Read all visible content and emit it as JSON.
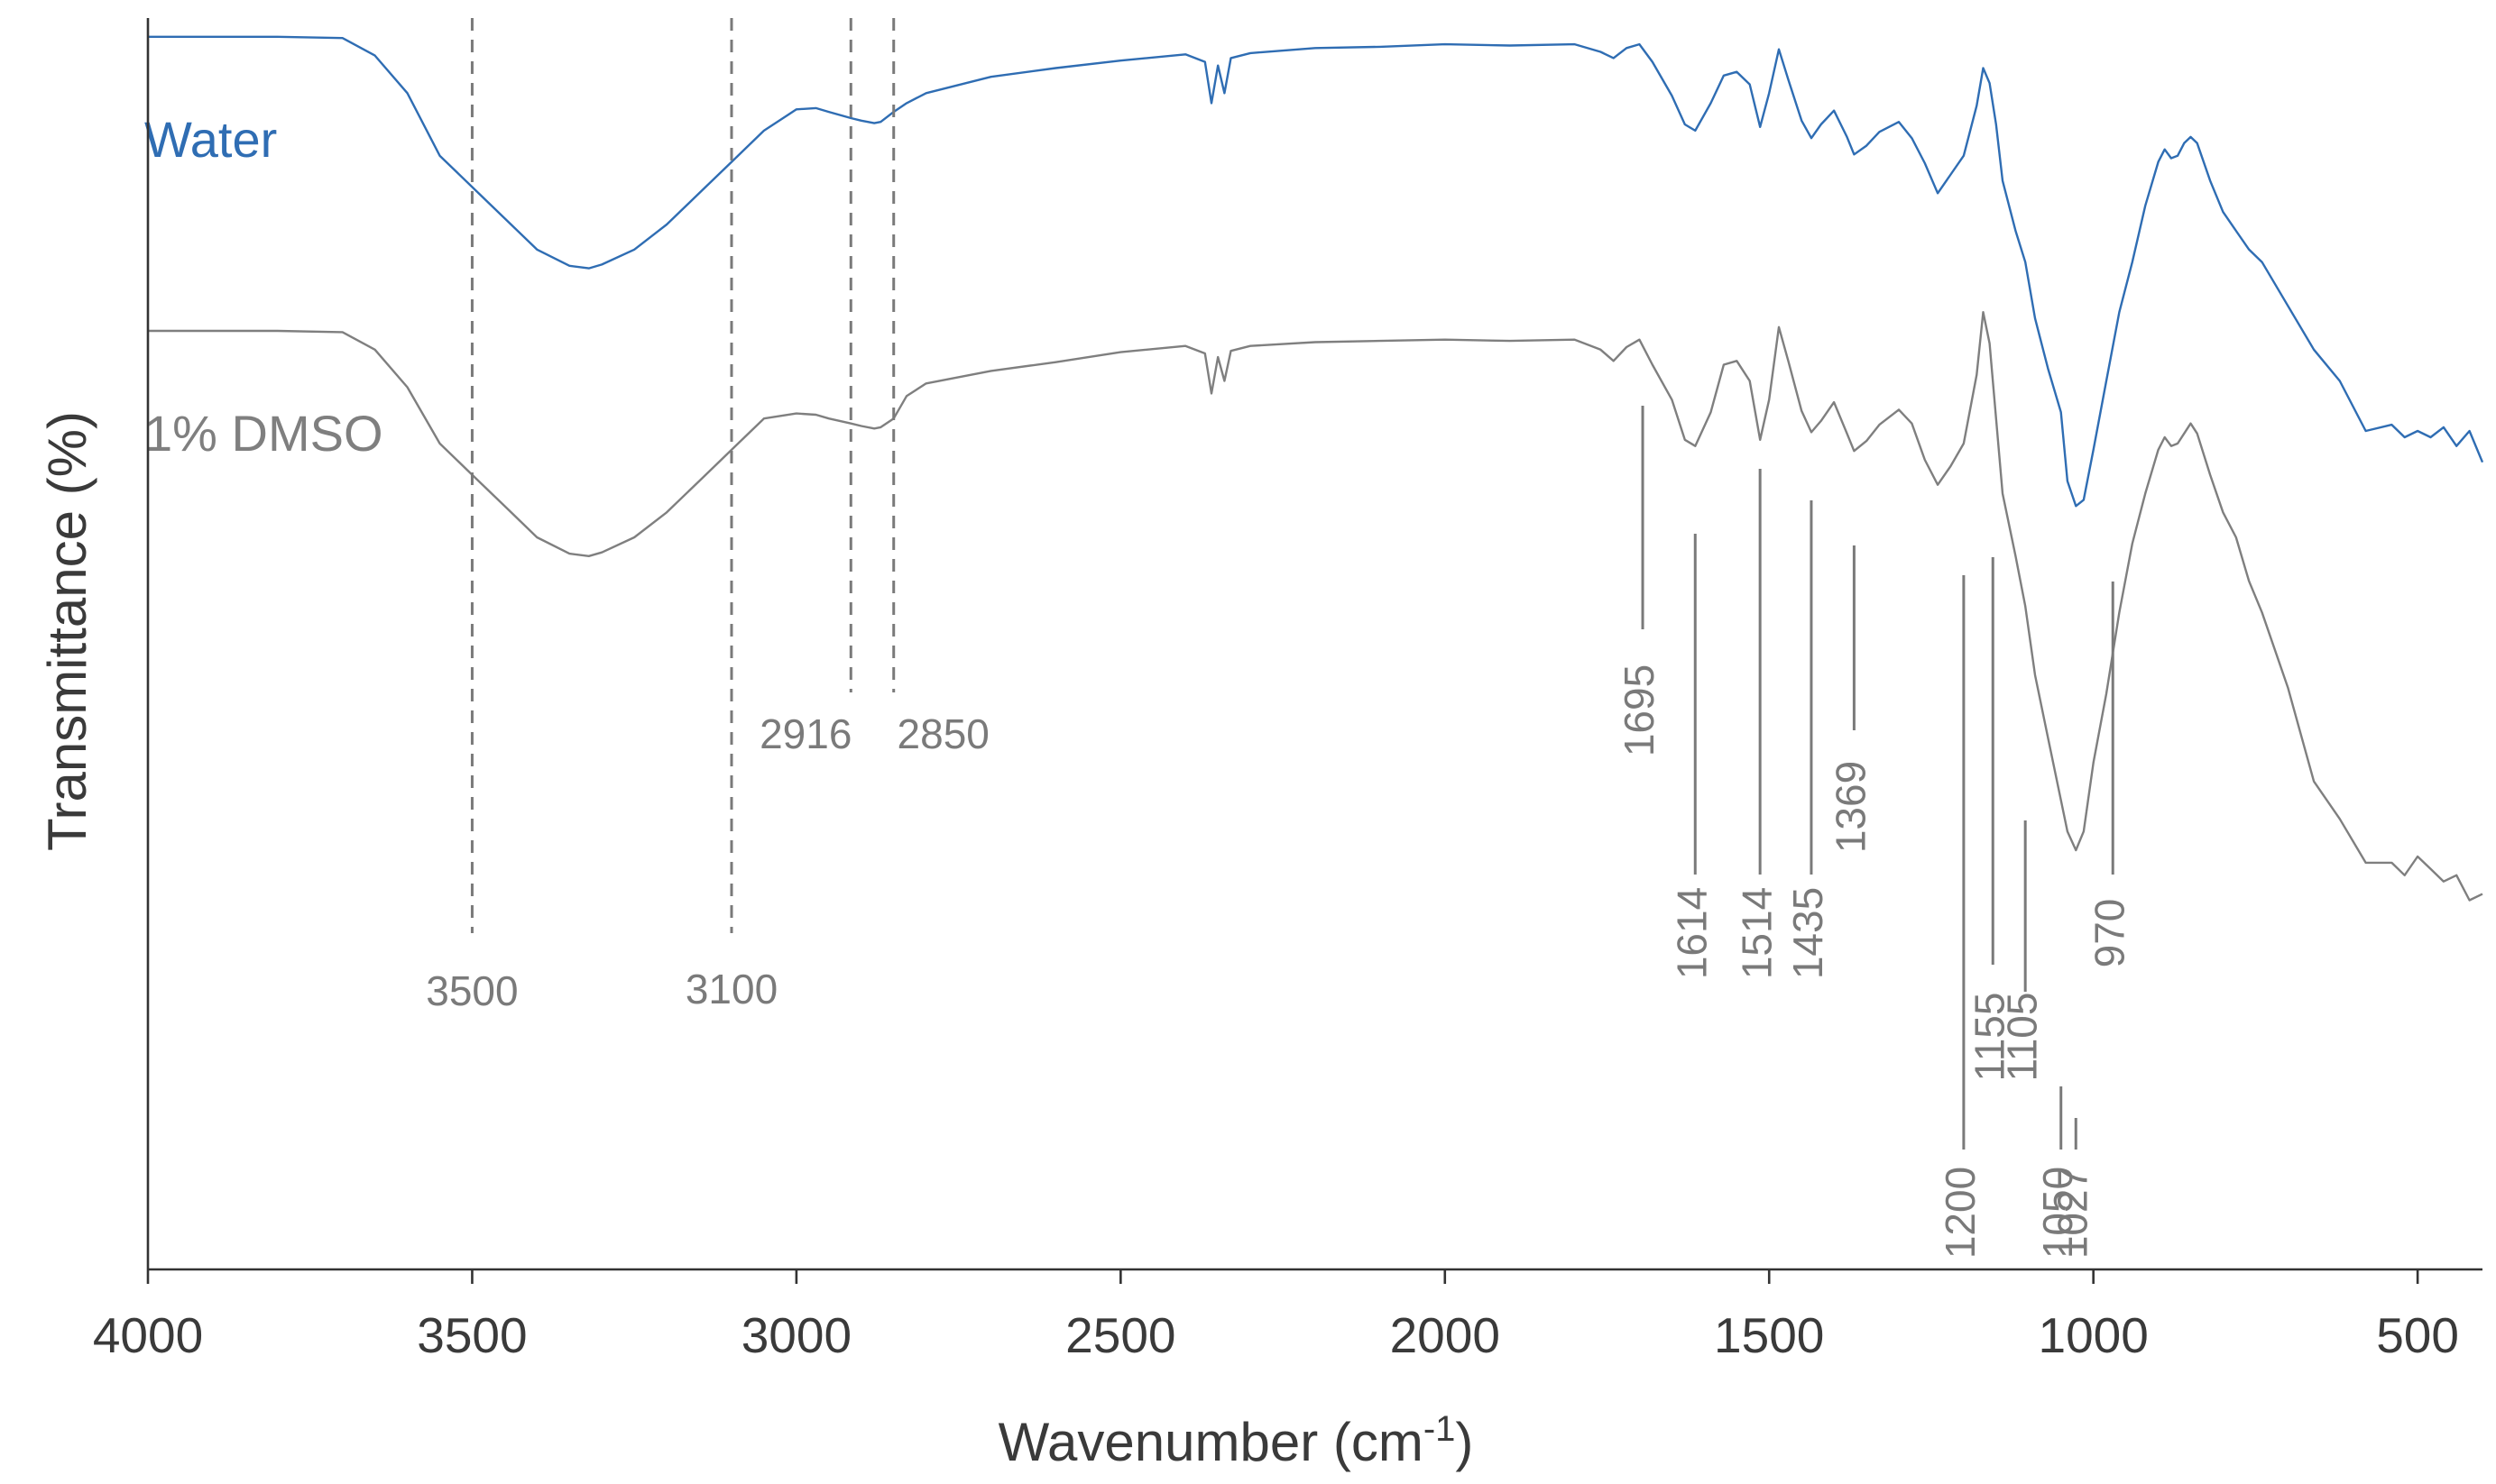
{
  "chart_data": {
    "type": "line",
    "title": "",
    "xlabel": "Wavenumber (cm",
    "xlabel_superscript": "-1",
    "xlabel_suffix": ")",
    "ylabel": "Transmittance (%)",
    "x_reversed": true,
    "xlim": [
      4000,
      400
    ],
    "ylim": [
      0,
      100
    ],
    "x_ticks": [
      4000,
      3500,
      3000,
      2500,
      2000,
      1500,
      1000,
      500
    ],
    "y_ticks": [],
    "grid": false,
    "legend": "none",
    "series": [
      {
        "name": "Water",
        "color": "#2f6db3",
        "x": [
          4000,
          3800,
          3700,
          3650,
          3600,
          3550,
          3500,
          3450,
          3400,
          3350,
          3320,
          3300,
          3250,
          3200,
          3150,
          3100,
          3050,
          3000,
          2970,
          2950,
          2916,
          2900,
          2880,
          2870,
          2850,
          2830,
          2800,
          2700,
          2600,
          2500,
          2400,
          2370,
          2360,
          2350,
          2340,
          2330,
          2300,
          2200,
          2100,
          2000,
          1900,
          1800,
          1760,
          1740,
          1720,
          1700,
          1680,
          1650,
          1630,
          1614,
          1590,
          1570,
          1550,
          1530,
          1514,
          1500,
          1485,
          1470,
          1450,
          1435,
          1420,
          1400,
          1380,
          1369,
          1350,
          1330,
          1300,
          1280,
          1260,
          1240,
          1220,
          1200,
          1180,
          1170,
          1160,
          1150,
          1140,
          1120,
          1105,
          1090,
          1070,
          1050,
          1040,
          1027,
          1015,
          1000,
          980,
          960,
          940,
          920,
          900,
          890,
          880,
          870,
          860,
          850,
          840,
          820,
          800,
          780,
          760,
          740,
          700,
          660,
          620,
          580,
          540,
          520,
          500,
          480,
          460,
          440,
          420,
          400
        ],
        "y": [
          98.5,
          98.5,
          98.4,
          97.0,
          94.0,
          89.0,
          86.5,
          84.0,
          81.5,
          80.2,
          80.0,
          80.3,
          81.5,
          83.5,
          86.0,
          88.5,
          91.0,
          92.7,
          92.8,
          92.5,
          92.0,
          91.8,
          91.6,
          91.7,
          92.5,
          93.2,
          94.0,
          95.3,
          96.0,
          96.6,
          97.1,
          96.5,
          93.2,
          96.2,
          94.0,
          96.8,
          97.2,
          97.6,
          97.7,
          97.9,
          97.8,
          97.9,
          97.3,
          96.8,
          97.6,
          97.9,
          96.5,
          93.8,
          91.5,
          91.0,
          93.2,
          95.4,
          95.7,
          94.7,
          91.3,
          94.0,
          97.5,
          95.0,
          91.8,
          90.4,
          91.5,
          92.6,
          90.5,
          89.1,
          89.8,
          90.9,
          91.7,
          90.4,
          88.4,
          86.0,
          87.5,
          89.0,
          93.0,
          96.0,
          94.8,
          91.5,
          87.0,
          83.0,
          80.5,
          76.0,
          72.0,
          68.5,
          63.0,
          61.0,
          61.5,
          65.5,
          71.0,
          76.5,
          80.5,
          85.0,
          88.5,
          89.5,
          88.8,
          89.0,
          90.0,
          90.5,
          90.0,
          87.0,
          84.5,
          83.0,
          81.5,
          80.5,
          77.0,
          73.5,
          71.0,
          67.0,
          67.5,
          66.5,
          67.0,
          66.5,
          67.3,
          65.8,
          67.0,
          64.5
        ]
      },
      {
        "name": "1% DMSO",
        "color": "#7f7f7f",
        "x": [
          4000,
          3800,
          3700,
          3650,
          3600,
          3550,
          3500,
          3450,
          3400,
          3350,
          3320,
          3300,
          3250,
          3200,
          3150,
          3100,
          3050,
          3000,
          2970,
          2950,
          2916,
          2900,
          2880,
          2870,
          2850,
          2830,
          2800,
          2700,
          2600,
          2500,
          2400,
          2370,
          2360,
          2350,
          2340,
          2330,
          2300,
          2200,
          2100,
          2000,
          1900,
          1800,
          1760,
          1740,
          1720,
          1700,
          1680,
          1650,
          1630,
          1614,
          1590,
          1570,
          1550,
          1530,
          1514,
          1500,
          1485,
          1470,
          1450,
          1435,
          1420,
          1400,
          1380,
          1369,
          1350,
          1330,
          1300,
          1280,
          1260,
          1240,
          1220,
          1200,
          1180,
          1170,
          1160,
          1150,
          1140,
          1120,
          1105,
          1090,
          1070,
          1050,
          1040,
          1027,
          1015,
          1000,
          980,
          960,
          940,
          920,
          900,
          890,
          880,
          870,
          860,
          850,
          840,
          820,
          800,
          780,
          760,
          740,
          700,
          660,
          620,
          580,
          540,
          520,
          500,
          480,
          460,
          440,
          420,
          400
        ],
        "y": [
          75.0,
          75.0,
          74.9,
          73.5,
          70.5,
          66.0,
          63.5,
          61.0,
          58.5,
          57.2,
          57.0,
          57.3,
          58.5,
          60.5,
          63.0,
          65.5,
          68.0,
          68.4,
          68.3,
          68.0,
          67.6,
          67.4,
          67.2,
          67.3,
          68.0,
          69.8,
          70.8,
          71.8,
          72.5,
          73.3,
          73.8,
          73.2,
          70.0,
          72.9,
          71.0,
          73.4,
          73.8,
          74.1,
          74.2,
          74.3,
          74.2,
          74.3,
          73.5,
          72.6,
          73.7,
          74.3,
          72.3,
          69.5,
          66.3,
          65.8,
          68.5,
          72.3,
          72.6,
          71.0,
          66.3,
          69.5,
          75.3,
          72.5,
          68.6,
          66.9,
          67.8,
          69.3,
          66.8,
          65.4,
          66.2,
          67.5,
          68.7,
          67.6,
          64.7,
          62.7,
          64.2,
          66.0,
          71.5,
          76.5,
          74.0,
          68.0,
          62.0,
          57.0,
          53.0,
          47.5,
          42.5,
          37.5,
          35.0,
          33.5,
          35.0,
          40.5,
          46.0,
          52.5,
          58.0,
          62.0,
          65.5,
          66.5,
          65.8,
          66.0,
          66.8,
          67.6,
          66.8,
          63.5,
          60.5,
          58.5,
          55.0,
          52.5,
          46.5,
          39.0,
          36.0,
          32.5,
          32.5,
          31.5,
          33.0,
          32.0,
          31.0,
          31.5,
          29.5,
          30.0
        ]
      }
    ],
    "annotations": {
      "dashed": [
        {
          "label": "3500",
          "x": 3500
        },
        {
          "label": "3100",
          "x": 3100
        },
        {
          "label": "2916",
          "x": 2916
        },
        {
          "label": "2850",
          "x": 2850
        }
      ],
      "solid": [
        {
          "label": "1695",
          "x": 1695
        },
        {
          "label": "1614",
          "x": 1614
        },
        {
          "label": "1514",
          "x": 1514
        },
        {
          "label": "1435",
          "x": 1435
        },
        {
          "label": "1369",
          "x": 1369
        },
        {
          "label": "1200",
          "x": 1200
        },
        {
          "label": "1155",
          "x": 1155
        },
        {
          "label": "1105",
          "x": 1105
        },
        {
          "label": "1050",
          "x": 1050
        },
        {
          "label": "1027",
          "x": 1027
        },
        {
          "label": "970",
          "x": 970
        }
      ]
    }
  }
}
